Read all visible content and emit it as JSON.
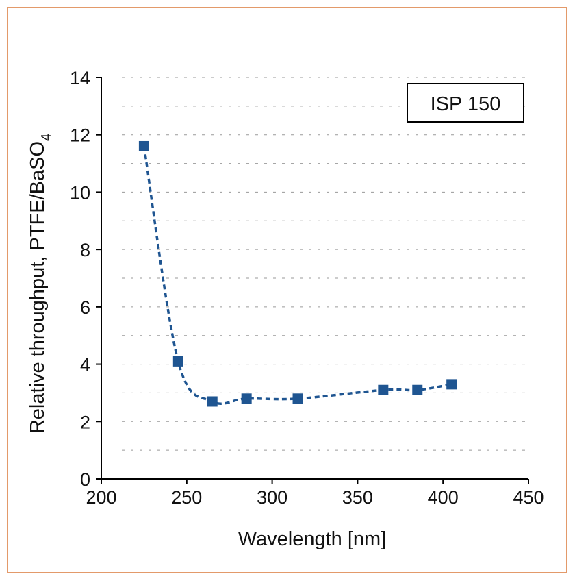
{
  "chart_data": {
    "type": "line",
    "xlabel": "Wavelength [nm]",
    "ylabel_main": "Relative throughput, PTFE/BaSO",
    "ylabel_sub": "4",
    "legend_label": "ISP 150",
    "xlim": [
      200,
      450
    ],
    "ylim": [
      0,
      14
    ],
    "x_ticks": [
      "200",
      "250",
      "300",
      "350",
      "400",
      "450"
    ],
    "y_ticks": [
      "0",
      "2",
      "4",
      "6",
      "8",
      "10",
      "12",
      "14"
    ],
    "grid": true,
    "legend_position": "top-right",
    "series": [
      {
        "color": "#1f5591",
        "line_style": "dashed",
        "marker": "square",
        "x": [
          225,
          245,
          265,
          285,
          315,
          365,
          385,
          405
        ],
        "y": [
          11.6,
          4.1,
          2.7,
          2.8,
          2.8,
          3.1,
          3.1,
          3.3
        ]
      }
    ]
  }
}
